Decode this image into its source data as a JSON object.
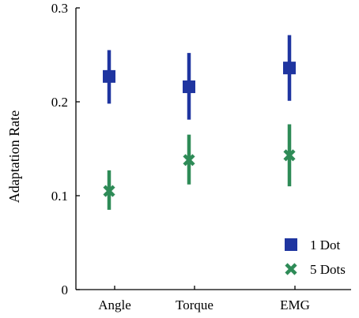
{
  "chart_data": {
    "type": "scatter",
    "categories": [
      "Angle",
      "Torque",
      "EMG"
    ],
    "ylabel": "Adaptation Rate",
    "xlabel": "",
    "ylim": [
      0,
      0.3
    ],
    "yticks": [
      "0",
      "0.1",
      "0.2",
      "0.3"
    ],
    "grid": false,
    "legend_position": "bottom-right",
    "series": [
      {
        "name": "1 Dot",
        "marker": "square",
        "color": "#1f35a0",
        "values": [
          0.227,
          0.216,
          0.236
        ],
        "error_low": [
          0.198,
          0.181,
          0.201
        ],
        "error_high": [
          0.255,
          0.252,
          0.271
        ]
      },
      {
        "name": "5 Dots",
        "marker": "x",
        "color": "#2e8b57",
        "values": [
          0.105,
          0.138,
          0.143
        ],
        "error_low": [
          0.085,
          0.112,
          0.11
        ],
        "error_high": [
          0.127,
          0.165,
          0.176
        ]
      }
    ]
  }
}
